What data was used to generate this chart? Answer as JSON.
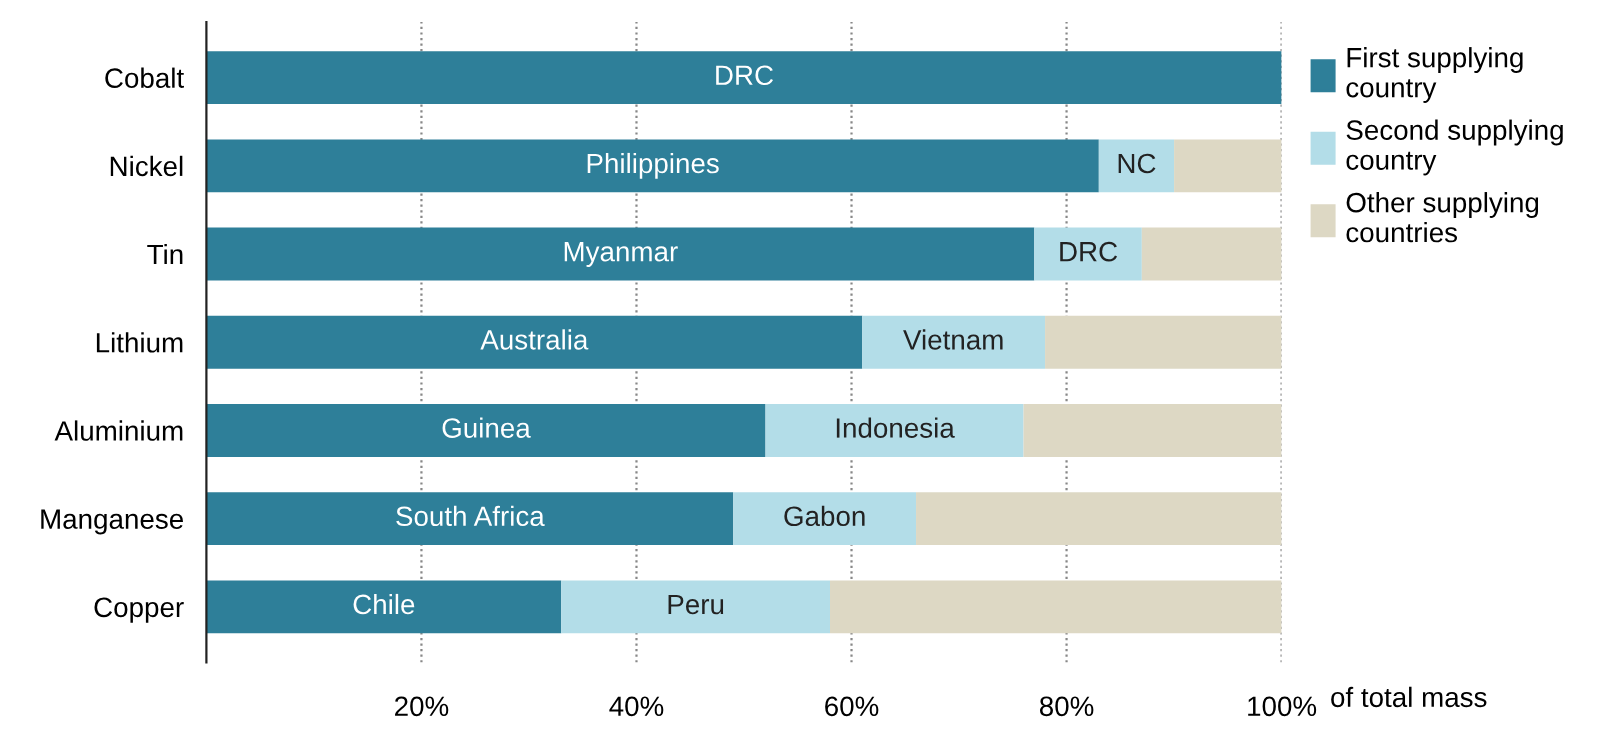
{
  "chart_data": {
    "type": "bar",
    "orientation": "horizontal",
    "stacked": true,
    "xlabel": "of total mass",
    "categories": [
      "Cobalt",
      "Nickel",
      "Tin",
      "Lithium",
      "Aluminium",
      "Manganese",
      "Copper"
    ],
    "series": [
      {
        "name": "First supplying\ncountry",
        "color": "#2e7f99",
        "values": [
          100,
          83,
          77,
          61,
          52,
          49,
          33
        ],
        "value_labels": [
          "DRC",
          "Philippines",
          "Myanmar",
          "Australia",
          "Guinea",
          "South Africa",
          "Chile"
        ]
      },
      {
        "name": "Second supplying\ncountry",
        "color": "#b3dde8",
        "values": [
          0,
          7,
          10,
          17,
          24,
          17,
          25
        ],
        "value_labels": [
          null,
          "NC",
          "DRC",
          "Vietnam",
          "Indonesia",
          "Gabon",
          "Peru"
        ]
      },
      {
        "name": "Other supplying\ncountries",
        "color": "#ddd8c4",
        "values": [
          0,
          10,
          13,
          22,
          24,
          34,
          42
        ]
      }
    ],
    "xlim": [
      0,
      100
    ],
    "xticks": [
      {
        "value": 20,
        "label": "20%"
      },
      {
        "value": 40,
        "label": "40%"
      },
      {
        "value": 60,
        "label": "60%"
      },
      {
        "value": 80,
        "label": "80%"
      },
      {
        "value": 100,
        "label": "100%"
      }
    ],
    "grid": "x",
    "legend": "right"
  }
}
